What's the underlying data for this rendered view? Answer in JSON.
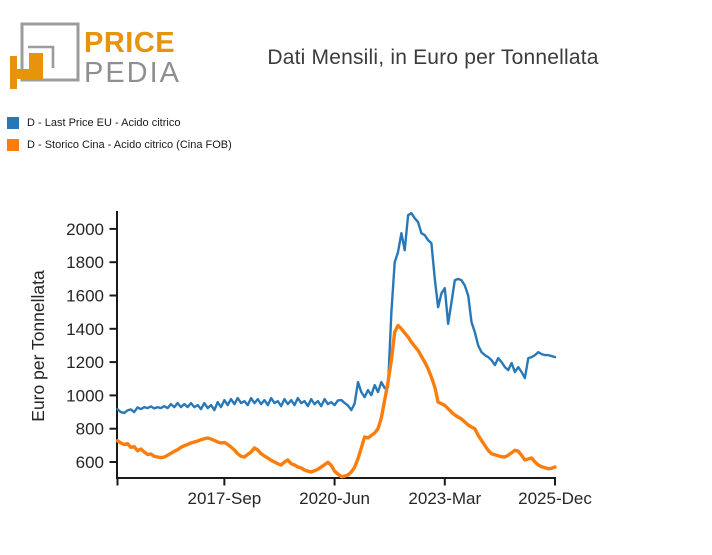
{
  "logo": {
    "line1": "PRICE",
    "line2": "PEDIA",
    "accent_color": "#e8930c",
    "gray_color": "#9c9c9c"
  },
  "title": "Dati Mensili, in Euro per Tonnellata",
  "legend": {
    "items": [
      {
        "label": "D - Last Price EU - Acido citrico",
        "color": "#2878b8"
      },
      {
        "label": "D - Storico Cina - Acido citrico (Cina FOB)",
        "color": "#fc7d0e"
      }
    ]
  },
  "chart_data": {
    "type": "line",
    "title": "Dati Mensili, in Euro per Tonnellata",
    "xlabel": "",
    "ylabel": "Euro per Tonnellata",
    "x_frequency": "monthly",
    "x_start": "2015-01",
    "x_end": "2025-12",
    "x_tick_labels": [
      "2017-Sep",
      "2020-Jun",
      "2023-Mar",
      "2025-Dec"
    ],
    "x_tick_month_index": [
      32,
      65,
      98,
      131
    ],
    "y_ticks": [
      600,
      800,
      1000,
      1200,
      1400,
      1600,
      1800,
      2000
    ],
    "ylim": [
      504,
      2100
    ],
    "grid": false,
    "legend_position": "top-left-outside",
    "axis_color": "#1a1a1a",
    "tick_label_color": "#262626",
    "series": [
      {
        "name": "D - Last Price EU - Acido citrico",
        "color": "#2878b8",
        "line_width": 2.4,
        "values": [
          918,
          900,
          895,
          910,
          916,
          900,
          928,
          918,
          930,
          924,
          934,
          922,
          930,
          924,
          936,
          924,
          948,
          930,
          954,
          930,
          948,
          930,
          954,
          930,
          942,
          918,
          954,
          924,
          942,
          912,
          960,
          930,
          972,
          942,
          978,
          948,
          984,
          954,
          966,
          942,
          984,
          954,
          978,
          948,
          972,
          942,
          984,
          954,
          966,
          936,
          978,
          948,
          972,
          942,
          984,
          954,
          966,
          936,
          978,
          948,
          966,
          936,
          978,
          948,
          960,
          942,
          970,
          972,
          955,
          940,
          912,
          950,
          1080,
          1020,
          990,
          1032,
          1002,
          1062,
          1020,
          1080,
          1044,
          1050,
          1500,
          1800,
          1860,
          1974,
          1872,
          2082,
          2094,
          2064,
          2040,
          1974,
          1962,
          1932,
          1914,
          1700,
          1530,
          1614,
          1644,
          1430,
          1560,
          1692,
          1700,
          1692,
          1660,
          1600,
          1440,
          1380,
          1300,
          1260,
          1242,
          1230,
          1212,
          1182,
          1224,
          1200,
          1170,
          1152,
          1194,
          1140,
          1170,
          1140,
          1104,
          1224,
          1230,
          1242,
          1260,
          1248,
          1242,
          1242,
          1236,
          1230
        ]
      },
      {
        "name": "D - Storico Cina - Acido citrico (Cina FOB)",
        "color": "#fc7d0e",
        "line_width": 3.4,
        "values": [
          728,
          715,
          705,
          710,
          688,
          692,
          668,
          678,
          660,
          645,
          648,
          634,
          630,
          626,
          630,
          640,
          652,
          664,
          674,
          688,
          698,
          706,
          714,
          720,
          726,
          734,
          740,
          744,
          738,
          730,
          720,
          714,
          718,
          706,
          690,
          672,
          650,
          634,
          630,
          645,
          660,
          684,
          672,
          650,
          636,
          624,
          610,
          600,
          590,
          582,
          600,
          612,
          590,
          582,
          570,
          564,
          552,
          545,
          540,
          548,
          556,
          570,
          584,
          598,
          580,
          545,
          528,
          512,
          515,
          522,
          540,
          568,
          620,
          684,
          750,
          744,
          760,
          774,
          800,
          864,
          972,
          1080,
          1212,
          1380,
          1420,
          1400,
          1375,
          1350,
          1320,
          1295,
          1270,
          1235,
          1200,
          1160,
          1110,
          1050,
          960,
          950,
          940,
          920,
          900,
          882,
          870,
          858,
          840,
          822,
          810,
          800,
          760,
          730,
          700,
          670,
          650,
          644,
          638,
          632,
          630,
          640,
          656,
          670,
          665,
          640,
          612,
          618,
          624,
          600,
          582,
          572,
          566,
          560,
          562,
          570
        ]
      }
    ]
  }
}
